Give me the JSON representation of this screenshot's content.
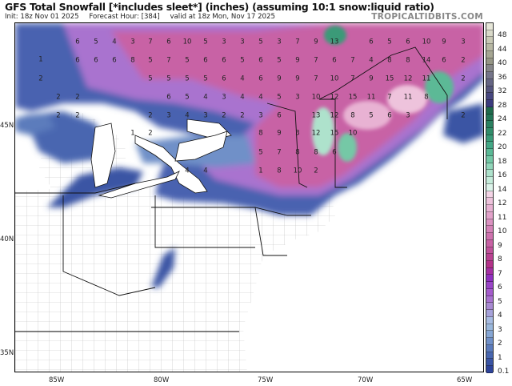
{
  "header": {
    "title": "GFS Total Snowfall [*includes sleet*] (inches) (assuming 10:1 snow:liquid ratio)",
    "init": "Init: 18z Nov 01 2025",
    "forecast_hour": "Forecast Hour: [384]",
    "valid": "valid at 18z Mon, Nov 17 2025",
    "brand": "TROPICALTIDBITS.COM"
  },
  "axes": {
    "lon_labels": [
      "85W",
      "80W",
      "75W",
      "70W",
      "65W"
    ],
    "lat_labels": [
      "45N",
      "40N",
      "35N"
    ]
  },
  "legend": {
    "labels": [
      "48",
      "44",
      "40",
      "36",
      "32",
      "28",
      "24",
      "22",
      "20",
      "18",
      "16",
      "14",
      "12",
      "11",
      "10",
      "9",
      "8",
      "7",
      "6",
      "5",
      "4",
      "3",
      "2",
      "1",
      "0.1"
    ],
    "colors": [
      "#e6e6d8",
      "#d9d9c9",
      "#c9c9b6",
      "#b8b8a4",
      "#a6a693",
      "#969686",
      "#86868a",
      "#75758a",
      "#656584",
      "#55557e",
      "#474780",
      "#3b3b7e",
      "#1f6a4c",
      "#237456",
      "#2a8060",
      "#318c6a",
      "#3a9a78",
      "#44a886",
      "#5bb996",
      "#74c8a6",
      "#92d6ba",
      "#aee2cc",
      "#c6ecdb",
      "#ddf3ea",
      "#f4d4e6",
      "#eec3dc",
      "#e8b2d3",
      "#e2a2ca",
      "#db92c1",
      "#d582b8",
      "#ce72ae",
      "#c862a5",
      "#c1529b",
      "#ba4292",
      "#b33289",
      "#a52fa3",
      "#9030c0",
      "#9a45c8",
      "#a55ccc",
      "#a973cf",
      "#a88ad2",
      "#a6a2da",
      "#a8bce2",
      "#9ab8dc",
      "#86a6d4",
      "#7090c8",
      "#5b7bbc",
      "#4866b0",
      "#3a54a4",
      "#2e449a"
    ],
    "colormap_note": ""
  },
  "map": {
    "snow_values": [
      6,
      5,
      4,
      3,
      7,
      6,
      10,
      5,
      3,
      3,
      6,
      6,
      6,
      8,
      5,
      7,
      5,
      6,
      6,
      5,
      2,
      5,
      5,
      5,
      5,
      6,
      4,
      2,
      2,
      6,
      5,
      4,
      3,
      4,
      2,
      2,
      2,
      3,
      4,
      3,
      2,
      2,
      1,
      2,
      4,
      4,
      1,
      5,
      3,
      7,
      9,
      13,
      6,
      5,
      6,
      10,
      9,
      3,
      6,
      5,
      9,
      7,
      6,
      7,
      4,
      8,
      8,
      14,
      6,
      2,
      6,
      9,
      9,
      7,
      10,
      7,
      9,
      15,
      12,
      11,
      2,
      4,
      5,
      3,
      10,
      12,
      15,
      11,
      7,
      11,
      8,
      3,
      6,
      13,
      12,
      8,
      5,
      6,
      3,
      2,
      8,
      9,
      3,
      12,
      15,
      10,
      5,
      7,
      8,
      8,
      6,
      1,
      8,
      10,
      2
    ]
  }
}
